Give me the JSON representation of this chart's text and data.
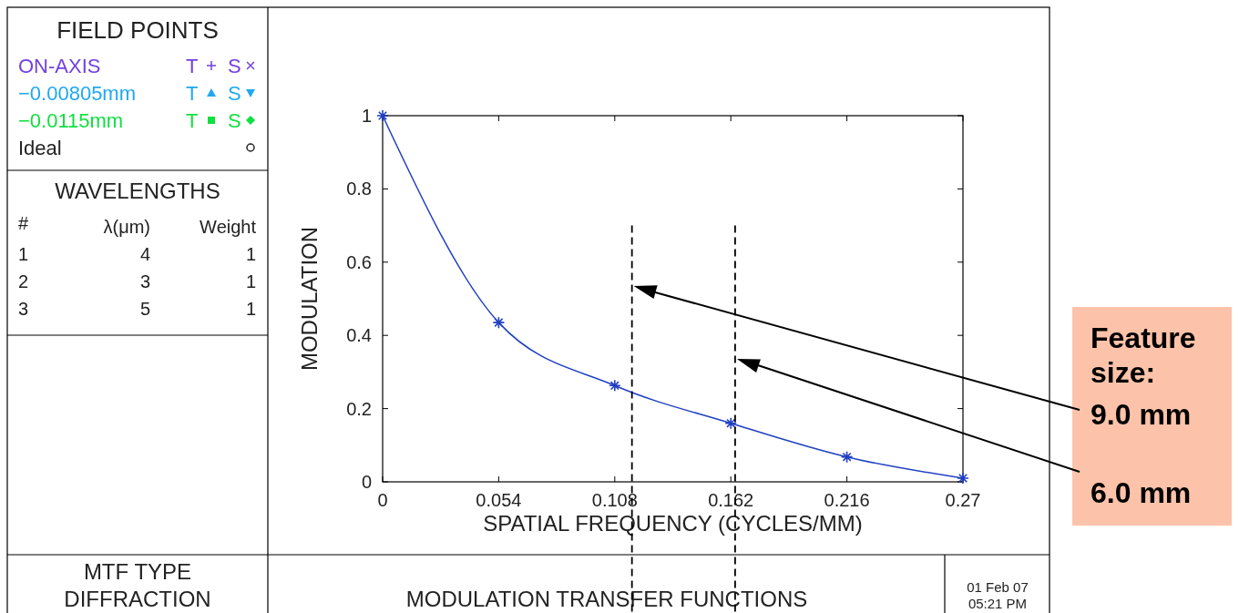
{
  "chart_data": {
    "type": "line",
    "title": "MODULATION TRANSFER FUNCTIONS",
    "xlabel": "SPATIAL FREQUENCY (CYCLES/MM)",
    "ylabel": "MODULATION",
    "x": [
      0,
      0.054,
      0.108,
      0.162,
      0.216,
      0.27
    ],
    "xlim": [
      0,
      0.27
    ],
    "xticks": [
      0,
      0.054,
      0.108,
      0.162,
      0.216,
      0.27
    ],
    "ylim": [
      0,
      1
    ],
    "yticks": [
      0,
      0.2,
      0.4,
      0.6,
      0.8,
      1
    ],
    "line_style": "solid",
    "marker": "cross",
    "series": [
      {
        "color": "#2040c0",
        "values": [
          1,
          0.435,
          0.263,
          0.16,
          0.068,
          0.01
        ]
      }
    ],
    "ref_lines": [
      {
        "axis": "x",
        "value": 0.116,
        "line_style": "dashed",
        "color": "#000000"
      },
      {
        "axis": "x",
        "value": 0.164,
        "line_style": "dashed",
        "color": "#000000"
      }
    ],
    "annotations": [
      "FIELD POINTS",
      "ON-AXIS",
      "−0.00805mm",
      "−0.0115mm",
      "Ideal",
      "T",
      "S",
      "T",
      "S",
      "T",
      "S",
      "WAVELENGTHS",
      "#",
      "λ(μm)",
      "Weight",
      "1",
      "4",
      "1",
      "2",
      "3",
      "1",
      "3",
      "5",
      "1",
      "MTF TYPE",
      "DIFFRACTION",
      "01 Feb 07",
      "05:21 PM",
      "Feature size:",
      "9.0 mm",
      "6.0 mm"
    ]
  }
}
